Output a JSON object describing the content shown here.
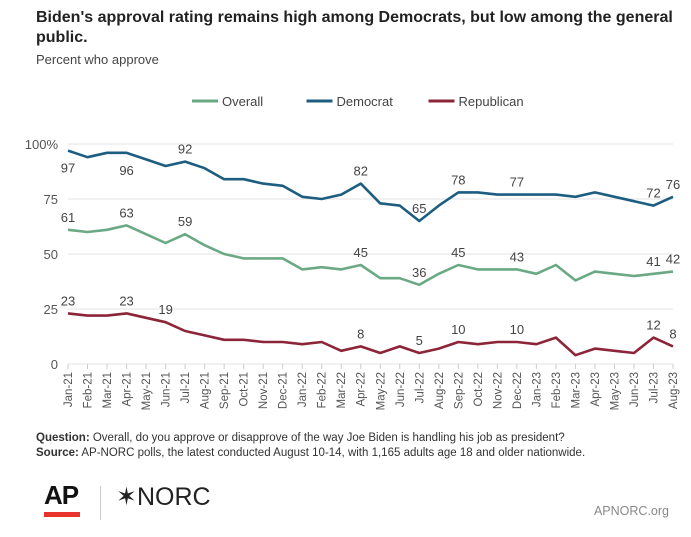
{
  "header": {
    "title": "Biden's approval rating remains high among Democrats, but low among the general public.",
    "subtitle": "Percent who approve"
  },
  "chart_data": {
    "type": "line",
    "title": "Biden's approval rating remains high among Democrats, but low among the general public.",
    "subtitle": "Percent who approve",
    "ylim": [
      0,
      100
    ],
    "yticks": [
      "0",
      "25",
      "50",
      "75",
      "100%"
    ],
    "ytick_values": [
      0,
      25,
      50,
      75,
      100
    ],
    "grid": true,
    "legend_position": "top",
    "categories": [
      "Jan-21",
      "Feb-21",
      "Mar-21",
      "Apr-21",
      "May-21",
      "Jun-21",
      "Jul-21",
      "Aug-21",
      "Sep-21",
      "Oct-21",
      "Nov-21",
      "Dec-21",
      "Jan-22",
      "Feb-22",
      "Mar-22",
      "Apr-22",
      "May-22",
      "Jun-22",
      "Jul-22",
      "Aug-22",
      "Sep-22",
      "Oct-22",
      "Nov-22",
      "Dec-22",
      "Jan-23",
      "Feb-23",
      "Mar-23",
      "Apr-23",
      "May-23",
      "Jun-23",
      "Jul-23",
      "Aug-23"
    ],
    "series": [
      {
        "name": "Overall",
        "color": "#6aa983",
        "values": [
          61,
          60,
          61,
          63,
          59,
          55,
          59,
          54,
          50,
          48,
          48,
          48,
          43,
          44,
          43,
          45,
          39,
          39,
          36,
          41,
          45,
          43,
          43,
          43,
          41,
          45,
          38,
          42,
          41,
          40,
          41,
          42
        ],
        "labeled": [
          0,
          3,
          6,
          15,
          18,
          20,
          23,
          30,
          31
        ],
        "label_pos": "above"
      },
      {
        "name": "Democrat",
        "color": "#1d5d80",
        "values": [
          97,
          94,
          96,
          96,
          93,
          90,
          92,
          89,
          84,
          84,
          82,
          81,
          76,
          75,
          77,
          82,
          73,
          72,
          65,
          72,
          78,
          78,
          77,
          77,
          77,
          77,
          76,
          78,
          76,
          74,
          72,
          76
        ],
        "labeled": [
          0,
          3,
          6,
          15,
          18,
          20,
          23,
          30,
          31
        ],
        "label_pos": "above"
      },
      {
        "name": "Republican",
        "color": "#8c2538",
        "values": [
          23,
          22,
          22,
          23,
          21,
          19,
          15,
          13,
          11,
          11,
          10,
          10,
          9,
          10,
          6,
          8,
          5,
          8,
          5,
          7,
          10,
          9,
          10,
          10,
          9,
          12,
          4,
          7,
          6,
          5,
          12,
          8
        ],
        "labeled": [
          0,
          3,
          5,
          15,
          18,
          20,
          23,
          30,
          31
        ],
        "label_pos": "above"
      }
    ]
  },
  "footer": {
    "question_label": "Question:",
    "question": " Overall, do you approve or disapprove of the way Joe Biden is handling his job as president?",
    "source_label": "Source:",
    "source": " AP-NORC polls, the latest conducted August 10-14, with 1,165 adults age 18 and older nationwide.",
    "logo_ap": "AP",
    "logo_norc": "NORC",
    "url": "APNORC.org"
  }
}
